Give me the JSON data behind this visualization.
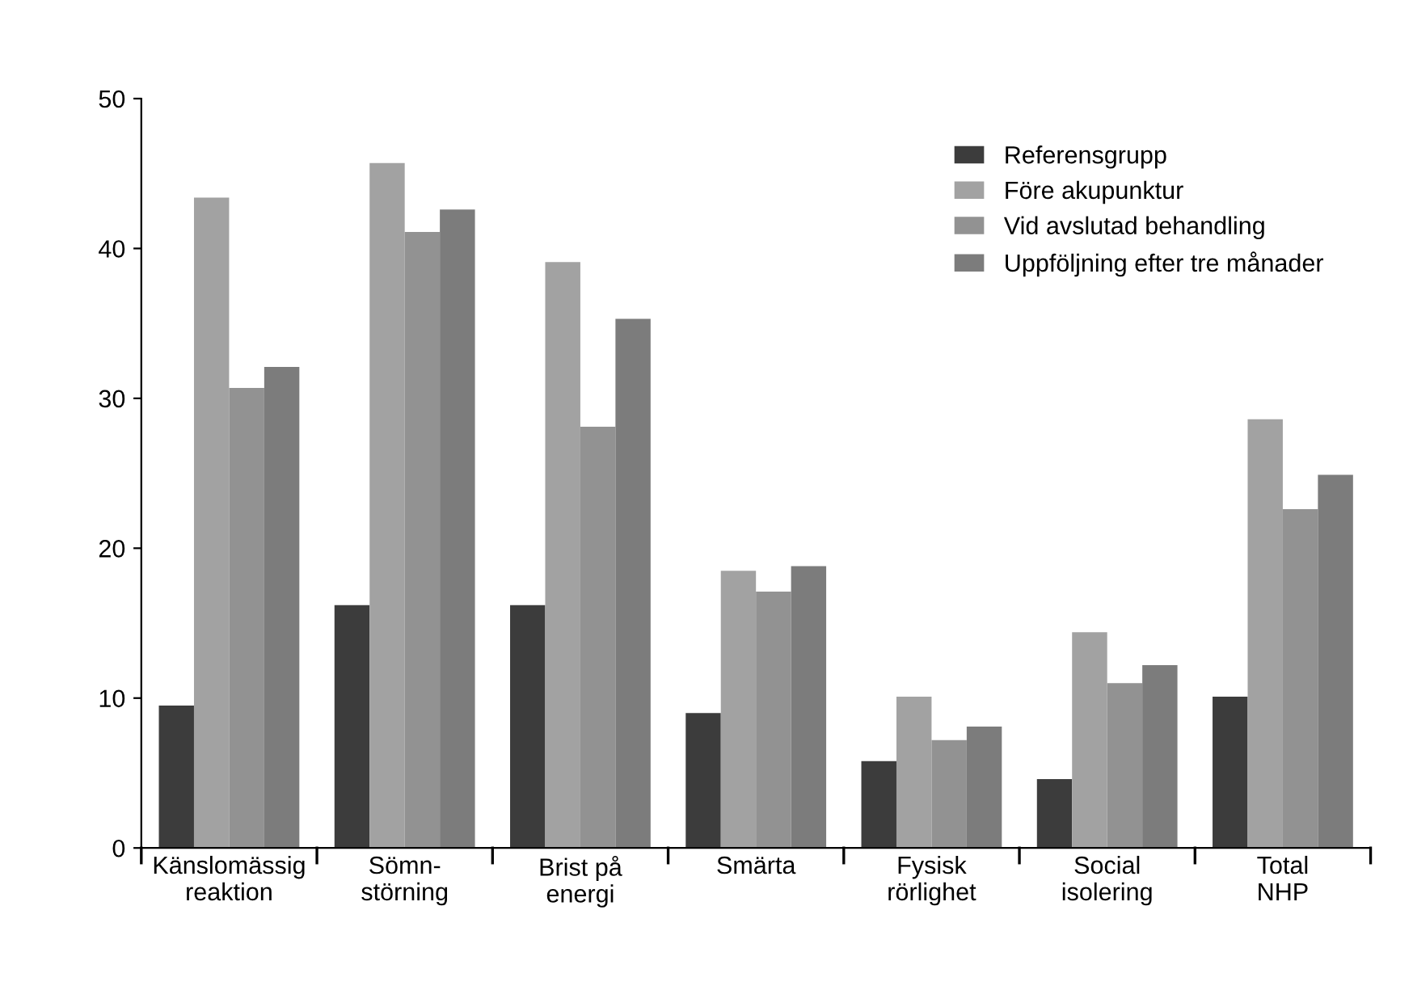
{
  "chart_data": {
    "type": "bar",
    "categories": [
      "Känslomässig\nreaktion",
      "Sömn-\nstörning",
      "Brist på\nenergi",
      "Smärta",
      "Fysisk\nrörlighet",
      "Social\nisolering",
      "Total\nNHP"
    ],
    "series": [
      {
        "name": "Referensgrupp",
        "color": "#3c3c3c",
        "values": [
          9.5,
          16.2,
          16.2,
          9.0,
          5.8,
          4.6,
          10.1
        ]
      },
      {
        "name": "Före akupunktur",
        "color": "#a2a2a2",
        "values": [
          43.4,
          45.7,
          39.1,
          18.5,
          10.1,
          14.4,
          28.6
        ]
      },
      {
        "name": "Vid avslutad behandling",
        "color": "#929292",
        "values": [
          30.7,
          41.1,
          28.1,
          17.1,
          7.2,
          11.0,
          22.6
        ]
      },
      {
        "name": "Uppföljning efter tre månader",
        "color": "#7c7c7c",
        "values": [
          32.1,
          42.6,
          35.3,
          18.8,
          8.1,
          12.2,
          24.9
        ]
      }
    ],
    "ylim": [
      0,
      50
    ],
    "yticks": [
      0,
      10,
      20,
      30,
      40,
      50
    ],
    "grid": false,
    "legend": "top right"
  }
}
